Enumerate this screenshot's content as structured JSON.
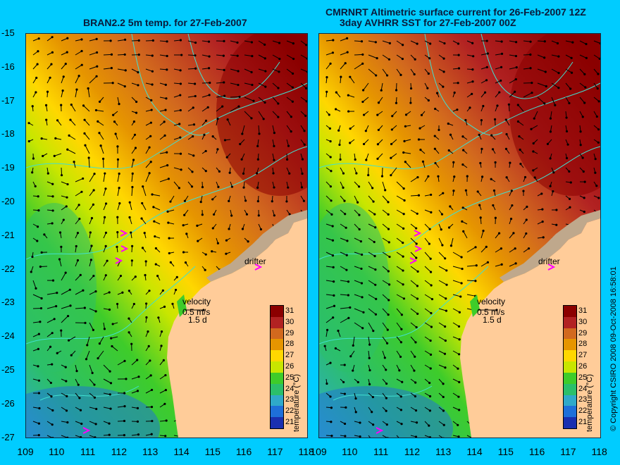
{
  "left_title": "BRAN2.2 5m temp. for 27-Feb-2007",
  "right_title_line1": "CMRNRT Altimetric surface current for 26-Feb-2007 12Z",
  "right_title_line2": "3day AVHRR SST for 27-Feb-2007 00Z",
  "lat_ticks": [
    "-15",
    "-16",
    "-17",
    "-18",
    "-19",
    "-20",
    "-21",
    "-22",
    "-23",
    "-24",
    "-25",
    "-26",
    "-27"
  ],
  "lon_ticks": [
    "109",
    "110",
    "111",
    "112",
    "113",
    "114",
    "115",
    "116",
    "117",
    "118"
  ],
  "drifter_label": "drifter",
  "velocity_label": "velocity",
  "velocity_scale": "0.5 m/s",
  "velocity_duration": "1.5 d",
  "colorbar_labels": [
    "31",
    "30",
    "29",
    "28",
    "27",
    "26",
    "25",
    "24",
    "23",
    "22",
    "21"
  ],
  "colorbar_title": "temperature (°C)",
  "copyright": "© Copyright CSIRO 2008   09-Oct-2008 16:58:01",
  "colors": {
    "background": "#00ccff",
    "land": "#ffcc99",
    "coast_shelf": "#bfa88c",
    "isobath": "#40e0d0",
    "drifter": "#ff00ff",
    "scale": [
      "#8b0000",
      "#b22222",
      "#d2691e",
      "#e69500",
      "#ffd700",
      "#c8e600",
      "#3ecc2a",
      "#2bbf6a",
      "#2fa9c9",
      "#1e6fd9",
      "#1a2fb0"
    ]
  }
}
